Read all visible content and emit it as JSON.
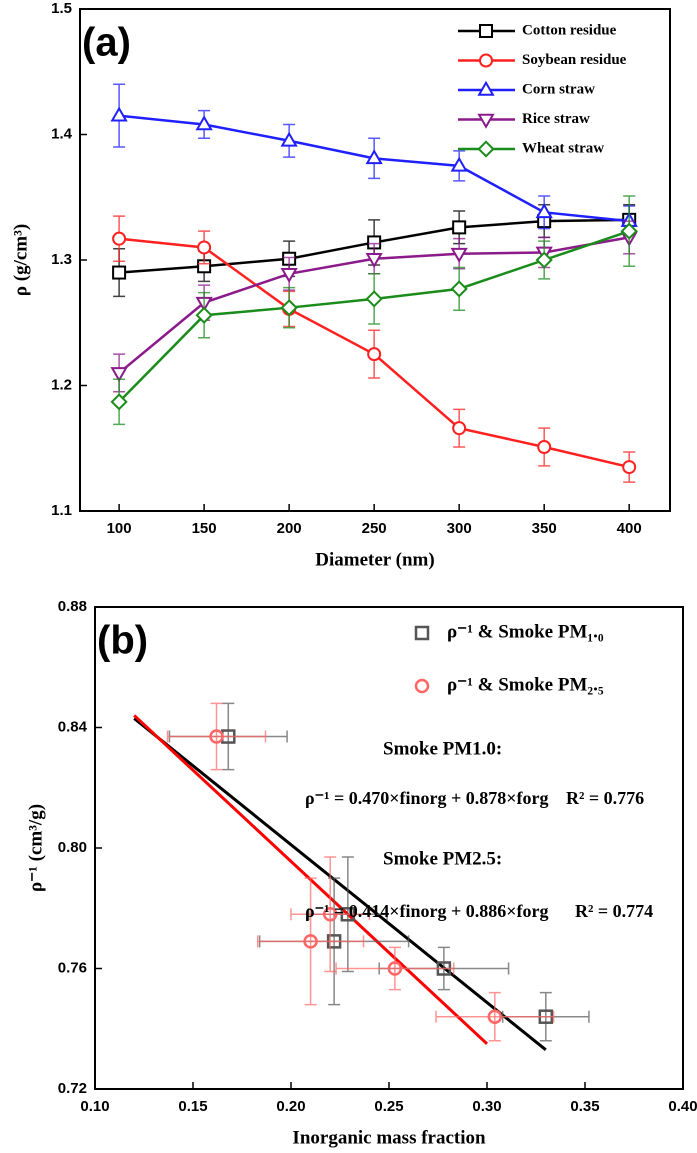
{
  "chart_data": [
    {
      "type": "line",
      "panel_label": "(a)",
      "xlabel": "Diameter (nm)",
      "ylabel": "ρ (g/cm³)",
      "x": [
        100,
        150,
        200,
        250,
        300,
        350,
        400
      ],
      "xlim": [
        77,
        424
      ],
      "xticks": [
        100,
        150,
        200,
        250,
        300,
        350,
        400
      ],
      "ylim": [
        1.1,
        1.5
      ],
      "yticks": [
        1.1,
        1.2,
        1.3,
        1.4,
        1.5
      ],
      "series": [
        {
          "name": "Cotton residue",
          "color": "#000000",
          "marker": "square",
          "values": [
            1.29,
            1.295,
            1.301,
            1.314,
            1.326,
            1.331,
            1.332
          ],
          "errors": [
            0.019,
            0.012,
            0.014,
            0.018,
            0.013,
            0.013,
            0.012
          ]
        },
        {
          "name": "Soybean residue",
          "color": "#ff2020",
          "marker": "circle",
          "values": [
            1.317,
            1.31,
            1.261,
            1.225,
            1.166,
            1.151,
            1.135
          ],
          "errors": [
            0.018,
            0.013,
            0.014,
            0.019,
            0.015,
            0.015,
            0.012
          ]
        },
        {
          "name": "Corn straw",
          "color": "#2020ff",
          "marker": "triangle-up",
          "values": [
            1.415,
            1.408,
            1.395,
            1.381,
            1.375,
            1.338,
            1.331
          ],
          "errors": [
            0.025,
            0.011,
            0.013,
            0.016,
            0.012,
            0.013,
            0.012
          ]
        },
        {
          "name": "Rice straw",
          "color": "#8b1a8b",
          "marker": "triangle-down",
          "values": [
            1.21,
            1.266,
            1.289,
            1.301,
            1.305,
            1.306,
            1.318
          ],
          "errors": [
            0.015,
            0.014,
            0.013,
            0.012,
            0.012,
            0.012,
            0.013
          ]
        },
        {
          "name": "Wheat straw",
          "color": "#1a8c1a",
          "marker": "diamond",
          "values": [
            1.187,
            1.256,
            1.262,
            1.269,
            1.277,
            1.3,
            1.323
          ],
          "errors": [
            0.018,
            0.018,
            0.016,
            0.02,
            0.017,
            0.015,
            0.028
          ]
        }
      ]
    },
    {
      "type": "scatter",
      "panel_label": "(b)",
      "xlabel": "Inorganic mass fraction",
      "ylabel": "ρ⁻¹ (cm³/g)",
      "xlim": [
        0.1,
        0.4
      ],
      "xticks": [
        {
          "value": 0.1,
          "label": "0.10"
        },
        0.15,
        {
          "value": 0.2,
          "label": "0.20"
        },
        0.25,
        {
          "value": 0.3,
          "label": "0.30"
        },
        0.35,
        {
          "value": 0.4,
          "label": "0.40"
        }
      ],
      "ylim": [
        0.72,
        0.88
      ],
      "yticks": [
        0.72,
        0.76,
        {
          "value": 0.8,
          "label": "0.80"
        },
        0.84,
        0.88
      ],
      "series": [
        {
          "name": "ρ⁻¹ & Smoke PM₁.₀",
          "color": "#555555",
          "marker": "square",
          "x": [
            0.168,
            0.229,
            0.222,
            0.278,
            0.33
          ],
          "values": [
            0.837,
            0.778,
            0.769,
            0.76,
            0.744
          ],
          "x_errors": [
            0.03,
            0.02,
            0.038,
            0.033,
            0.022
          ],
          "errors": [
            0.011,
            0.019,
            0.021,
            0.007,
            0.008
          ]
        },
        {
          "name": "ρ⁻¹ & Smoke PM₂.₅",
          "color": "#ff6666",
          "marker": "circle",
          "x": [
            0.162,
            0.22,
            0.21,
            0.253,
            0.304
          ],
          "values": [
            0.837,
            0.778,
            0.769,
            0.76,
            0.744
          ],
          "x_errors": [
            0.025,
            0.02,
            0.027,
            0.03,
            0.03
          ],
          "errors": [
            0.011,
            0.019,
            0.021,
            0.007,
            0.008
          ]
        }
      ],
      "fit_lines": [
        {
          "color": "#000000",
          "x": [
            0.12,
            0.33
          ],
          "values": [
            0.843,
            0.733
          ]
        },
        {
          "color": "#ff0000",
          "x": [
            0.12,
            0.3
          ],
          "values": [
            0.844,
            0.735
          ]
        }
      ],
      "annotations": [
        "Smoke PM1.0:",
        "ρ⁻¹ = 0.470×finorg + 0.878×forg",
        "R² = 0.776",
        "Smoke PM2.5:",
        "ρ⁻¹ = 0.414×finorg + 0.886×forg",
        "R² = 0.774"
      ]
    }
  ]
}
